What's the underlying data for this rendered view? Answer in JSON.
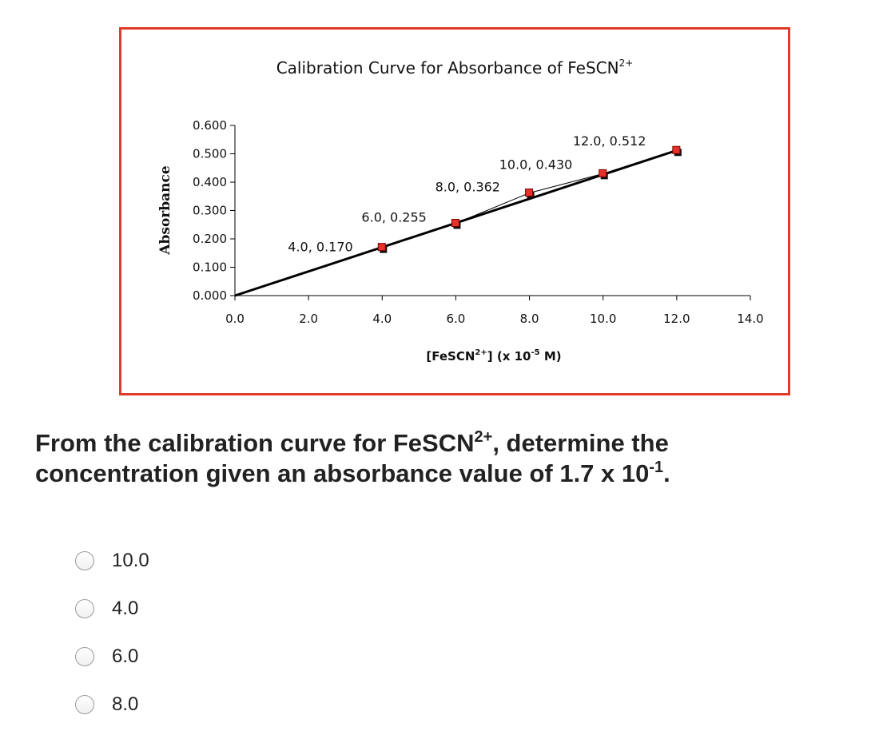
{
  "colors": {
    "frame_border": "#e03a2a",
    "marker_fill": "#e8312a",
    "marker_shadow": "#111111",
    "line": "#000000",
    "text": "#222222"
  },
  "chart_data": {
    "type": "scatter",
    "title": "Calibration Curve for Absorbance of FeSCN",
    "title_sup": "2+",
    "xlabel_parts": [
      "[FeSCN",
      "2+",
      "] (x 10",
      "-5",
      " M)"
    ],
    "ylabel": "Absorbance",
    "xlim": [
      0,
      14
    ],
    "ylim": [
      0,
      0.6
    ],
    "x_ticks": [
      0.0,
      2.0,
      4.0,
      6.0,
      8.0,
      10.0,
      12.0,
      14.0
    ],
    "x_tick_labels": [
      "0.0",
      "2.0",
      "4.0",
      "6.0",
      "8.0",
      "10.0",
      "12.0",
      "14.0"
    ],
    "y_ticks": [
      0.0,
      0.1,
      0.2,
      0.3,
      0.4,
      0.5,
      0.6
    ],
    "y_tick_labels": [
      "0.000",
      "0.100",
      "0.200",
      "0.300",
      "0.400",
      "0.500",
      "0.600"
    ],
    "grid": false,
    "legend": "none",
    "series": [
      {
        "x": [
          4.0,
          6.0,
          8.0,
          10.0,
          12.0
        ],
        "y": [
          0.17,
          0.255,
          0.362,
          0.43,
          0.512
        ],
        "labels": [
          "4.0, 0.170",
          "6.0, 0.255",
          "8.0, 0.362",
          "10.0, 0.430",
          "12.0, 0.512"
        ]
      }
    ],
    "trendline": {
      "x": [
        0.0,
        12.0
      ],
      "y": [
        0.0,
        0.512
      ]
    }
  },
  "question": {
    "line1_pre": "From the calibration curve for FeSCN",
    "line1_sup": "2+",
    "line1_post": ", determine the",
    "line2_pre": "concentration given an absorbance value of 1.7 x 10",
    "line2_sup": "-1",
    "line2_post": "."
  },
  "options": [
    {
      "label": "10.0"
    },
    {
      "label": "4.0"
    },
    {
      "label": "6.0"
    },
    {
      "label": "8.0"
    }
  ]
}
